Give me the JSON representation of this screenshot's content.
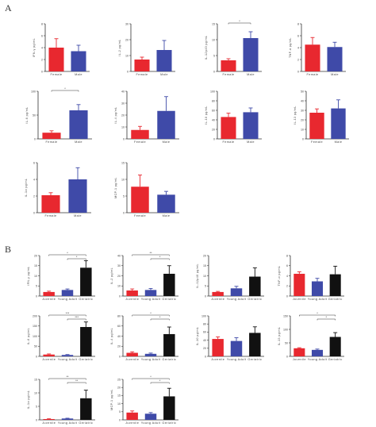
{
  "panels": {
    "A": "A",
    "B": "B"
  },
  "colors": {
    "female": "#e8282f",
    "male": "#3f4aa8",
    "juvenile": "#e8282f",
    "young_adult": "#3f4aa8",
    "geriatric": "#111111"
  },
  "chart_data": [
    {
      "id": "A1",
      "panel": "A",
      "type": "bar",
      "ylabel": "IFN-γ pg/mL",
      "categories": [
        "Female",
        "Male"
      ],
      "values": [
        4.0,
        3.4
      ],
      "errors": [
        1.5,
        1.0
      ],
      "ylim": [
        0,
        8
      ],
      "yticks": [
        "0",
        "2",
        "4",
        "6",
        "8"
      ],
      "significance": []
    },
    {
      "id": "A2",
      "panel": "A",
      "type": "bar",
      "ylabel": "IL-2 pg/mL",
      "categories": [
        "Female",
        "Male"
      ],
      "values": [
        7.5,
        13.5
      ],
      "errors": [
        1.5,
        6.0
      ],
      "ylim": [
        0,
        30
      ],
      "yticks": [
        "0",
        "10",
        "20",
        "30"
      ],
      "significance": []
    },
    {
      "id": "A3",
      "panel": "A",
      "type": "bar",
      "ylabel": "IL-12p40 pg/mL",
      "categories": [
        "Female",
        "Male"
      ],
      "values": [
        3.5,
        10.5
      ],
      "errors": [
        0.5,
        2.0
      ],
      "ylim": [
        0,
        15
      ],
      "yticks": [
        "0",
        "5",
        "10",
        "15"
      ],
      "significance": [
        {
          "from": 0,
          "to": 1,
          "label": "*"
        }
      ]
    },
    {
      "id": "A4",
      "panel": "A",
      "type": "bar",
      "ylabel": "TNF-α pg/mL",
      "categories": [
        "Female",
        "Male"
      ],
      "values": [
        4.5,
        4.1
      ],
      "errors": [
        1.2,
        0.8
      ],
      "ylim": [
        0,
        8
      ],
      "yticks": [
        "0",
        "2",
        "4",
        "6",
        "8"
      ],
      "significance": []
    },
    {
      "id": "A5",
      "panel": "A",
      "type": "bar",
      "ylabel": "IL-6 pg/mL",
      "categories": [
        "Female",
        "Male"
      ],
      "values": [
        13,
        60
      ],
      "errors": [
        4,
        12
      ],
      "ylim": [
        0,
        100
      ],
      "yticks": [
        "0",
        "50",
        "100"
      ],
      "significance": [
        {
          "from": 0,
          "to": 1,
          "label": "*"
        }
      ]
    },
    {
      "id": "A6",
      "panel": "A",
      "type": "bar",
      "ylabel": "IL-4 pg/mL",
      "categories": [
        "Female",
        "Male"
      ],
      "values": [
        7.5,
        23.5
      ],
      "errors": [
        3,
        12
      ],
      "ylim": [
        0,
        40
      ],
      "yticks": [
        "0",
        "10",
        "20",
        "30",
        "40"
      ],
      "significance": []
    },
    {
      "id": "A7",
      "panel": "A",
      "type": "bar",
      "ylabel": "IL-10 pg/mL",
      "categories": [
        "Female",
        "Male"
      ],
      "values": [
        46,
        56
      ],
      "errors": [
        8,
        9
      ],
      "ylim": [
        0,
        100
      ],
      "yticks": [
        "0",
        "20",
        "40",
        "60",
        "80",
        "100"
      ],
      "significance": []
    },
    {
      "id": "A8",
      "panel": "A",
      "type": "bar",
      "ylabel": "IL-13 pg/mL",
      "categories": [
        "Female",
        "Male"
      ],
      "values": [
        27.5,
        32
      ],
      "errors": [
        4,
        9
      ],
      "ylim": [
        0,
        50
      ],
      "yticks": [
        "0",
        "10",
        "20",
        "30",
        "40",
        "50"
      ],
      "significance": []
    },
    {
      "id": "A9",
      "panel": "A",
      "type": "bar",
      "ylabel": "IL-1α pg/mL",
      "categories": [
        "Female",
        "Male"
      ],
      "values": [
        2.1,
        4.0
      ],
      "errors": [
        0.3,
        1.4
      ],
      "ylim": [
        0,
        6
      ],
      "yticks": [
        "0",
        "2",
        "4",
        "6"
      ],
      "significance": []
    },
    {
      "id": "A10",
      "panel": "A",
      "type": "bar",
      "ylabel": "MCP-1 pg/mL",
      "categories": [
        "Female",
        "Male"
      ],
      "values": [
        7.8,
        5.4
      ],
      "errors": [
        3.5,
        1.0
      ],
      "ylim": [
        0,
        15
      ],
      "yticks": [
        "0",
        "5",
        "10",
        "15"
      ],
      "significance": []
    },
    {
      "id": "B1",
      "panel": "B",
      "type": "bar",
      "ylabel": "IFN-γ pg/mL",
      "categories": [
        "Juvenile",
        "Young Adult",
        "Geriatric"
      ],
      "values": [
        2,
        3,
        14
      ],
      "errors": [
        0.4,
        0.5,
        3.5
      ],
      "ylim": [
        0,
        20
      ],
      "yticks": [
        "0",
        "5",
        "10",
        "15",
        "20"
      ],
      "significance": [
        {
          "from": 0,
          "to": 2,
          "label": "*"
        },
        {
          "from": 1,
          "to": 2,
          "label": "*"
        }
      ]
    },
    {
      "id": "B2",
      "panel": "B",
      "type": "bar",
      "ylabel": "IL-2 pg/mL",
      "categories": [
        "Juvenile",
        "Young Adult",
        "Geriatric"
      ],
      "values": [
        5.5,
        6,
        22
      ],
      "errors": [
        1.5,
        1.5,
        8
      ],
      "ylim": [
        0,
        40
      ],
      "yticks": [
        "0",
        "10",
        "20",
        "30",
        "40"
      ],
      "significance": [
        {
          "from": 0,
          "to": 2,
          "label": "**"
        },
        {
          "from": 1,
          "to": 2,
          "label": "*"
        }
      ]
    },
    {
      "id": "B3",
      "panel": "B",
      "type": "bar",
      "ylabel": "IL-12p40 pg/mL",
      "categories": [
        "Juvenile",
        "Young Adult",
        "Geriatric"
      ],
      "values": [
        2,
        3.8,
        9.6
      ],
      "errors": [
        0.3,
        1,
        4.3
      ],
      "ylim": [
        0,
        20
      ],
      "yticks": [
        "0",
        "5",
        "10",
        "15",
        "20"
      ],
      "significance": []
    },
    {
      "id": "B4",
      "panel": "B",
      "type": "bar",
      "ylabel": "TNF-α pg/mL",
      "categories": [
        "Juvenile",
        "Young Adult",
        "Geriatric"
      ],
      "values": [
        4.4,
        2.9,
        4.3
      ],
      "errors": [
        0.4,
        0.6,
        1.6
      ],
      "ylim": [
        0,
        8
      ],
      "yticks": [
        "0",
        "2",
        "4",
        "6",
        "8"
      ],
      "significance": []
    },
    {
      "id": "B5",
      "panel": "B",
      "type": "bar",
      "ylabel": "IL-6 pg/mL",
      "categories": [
        "Juvenile",
        "Young Adult",
        "Geriatric"
      ],
      "values": [
        9,
        7,
        145
      ],
      "errors": [
        3,
        2,
        25
      ],
      "ylim": [
        0,
        200
      ],
      "yticks": [
        "0",
        "50",
        "100",
        "150",
        "200"
      ],
      "significance": [
        {
          "from": 0,
          "to": 2,
          "label": "***"
        },
        {
          "from": 1,
          "to": 2,
          "label": "***"
        }
      ]
    },
    {
      "id": "B6",
      "panel": "B",
      "type": "bar",
      "ylabel": "IL-4 pg/mL",
      "categories": [
        "Juvenile",
        "Young Adult",
        "Geriatric"
      ],
      "values": [
        7,
        5,
        44
      ],
      "errors": [
        2,
        1.5,
        14
      ],
      "ylim": [
        0,
        80
      ],
      "yticks": [
        "0",
        "20",
        "40",
        "60",
        "80"
      ],
      "significance": [
        {
          "from": 0,
          "to": 2,
          "label": "*"
        },
        {
          "from": 1,
          "to": 2,
          "label": "*"
        }
      ]
    },
    {
      "id": "B7",
      "panel": "B",
      "type": "bar",
      "ylabel": "IL-10 pg/mL",
      "categories": [
        "Juvenile",
        "Young Adult",
        "Geriatric"
      ],
      "values": [
        43,
        38,
        58
      ],
      "errors": [
        5,
        8,
        15
      ],
      "ylim": [
        0,
        100
      ],
      "yticks": [
        "0",
        "20",
        "40",
        "60",
        "80",
        "100"
      ],
      "significance": []
    },
    {
      "id": "B8",
      "panel": "B",
      "type": "bar",
      "ylabel": "IL-13 pg/mL",
      "categories": [
        "Juvenile",
        "Young Adult",
        "Geriatric"
      ],
      "values": [
        30,
        24,
        72
      ],
      "errors": [
        2,
        3,
        16
      ],
      "ylim": [
        0,
        150
      ],
      "yticks": [
        "0",
        "50",
        "100",
        "150"
      ],
      "significance": [
        {
          "from": 0,
          "to": 2,
          "label": "*"
        },
        {
          "from": 1,
          "to": 2,
          "label": "*"
        }
      ]
    },
    {
      "id": "B9",
      "panel": "B",
      "type": "bar",
      "ylabel": "IL-1α pg/mL",
      "categories": [
        "Juvenile",
        "Young Adult",
        "Geriatric"
      ],
      "values": [
        0.3,
        0.5,
        8
      ],
      "errors": [
        0.1,
        0.1,
        3
      ],
      "ylim": [
        0,
        15
      ],
      "yticks": [
        "0",
        "5",
        "10",
        "15"
      ],
      "significance": [
        {
          "from": 0,
          "to": 2,
          "label": "**"
        },
        {
          "from": 1,
          "to": 2,
          "label": "**"
        }
      ]
    },
    {
      "id": "B10",
      "panel": "B",
      "type": "bar",
      "ylabel": "MCP-1 pg/mL",
      "categories": [
        "Juvenile",
        "Young Adult",
        "Geriatric"
      ],
      "values": [
        4.5,
        3.8,
        14.5
      ],
      "errors": [
        1,
        0.7,
        5
      ],
      "ylim": [
        0,
        25
      ],
      "yticks": [
        "0",
        "5",
        "10",
        "15",
        "20",
        "25"
      ],
      "significance": [
        {
          "from": 0,
          "to": 2,
          "label": "*"
        },
        {
          "from": 1,
          "to": 2,
          "label": "*"
        }
      ]
    }
  ]
}
